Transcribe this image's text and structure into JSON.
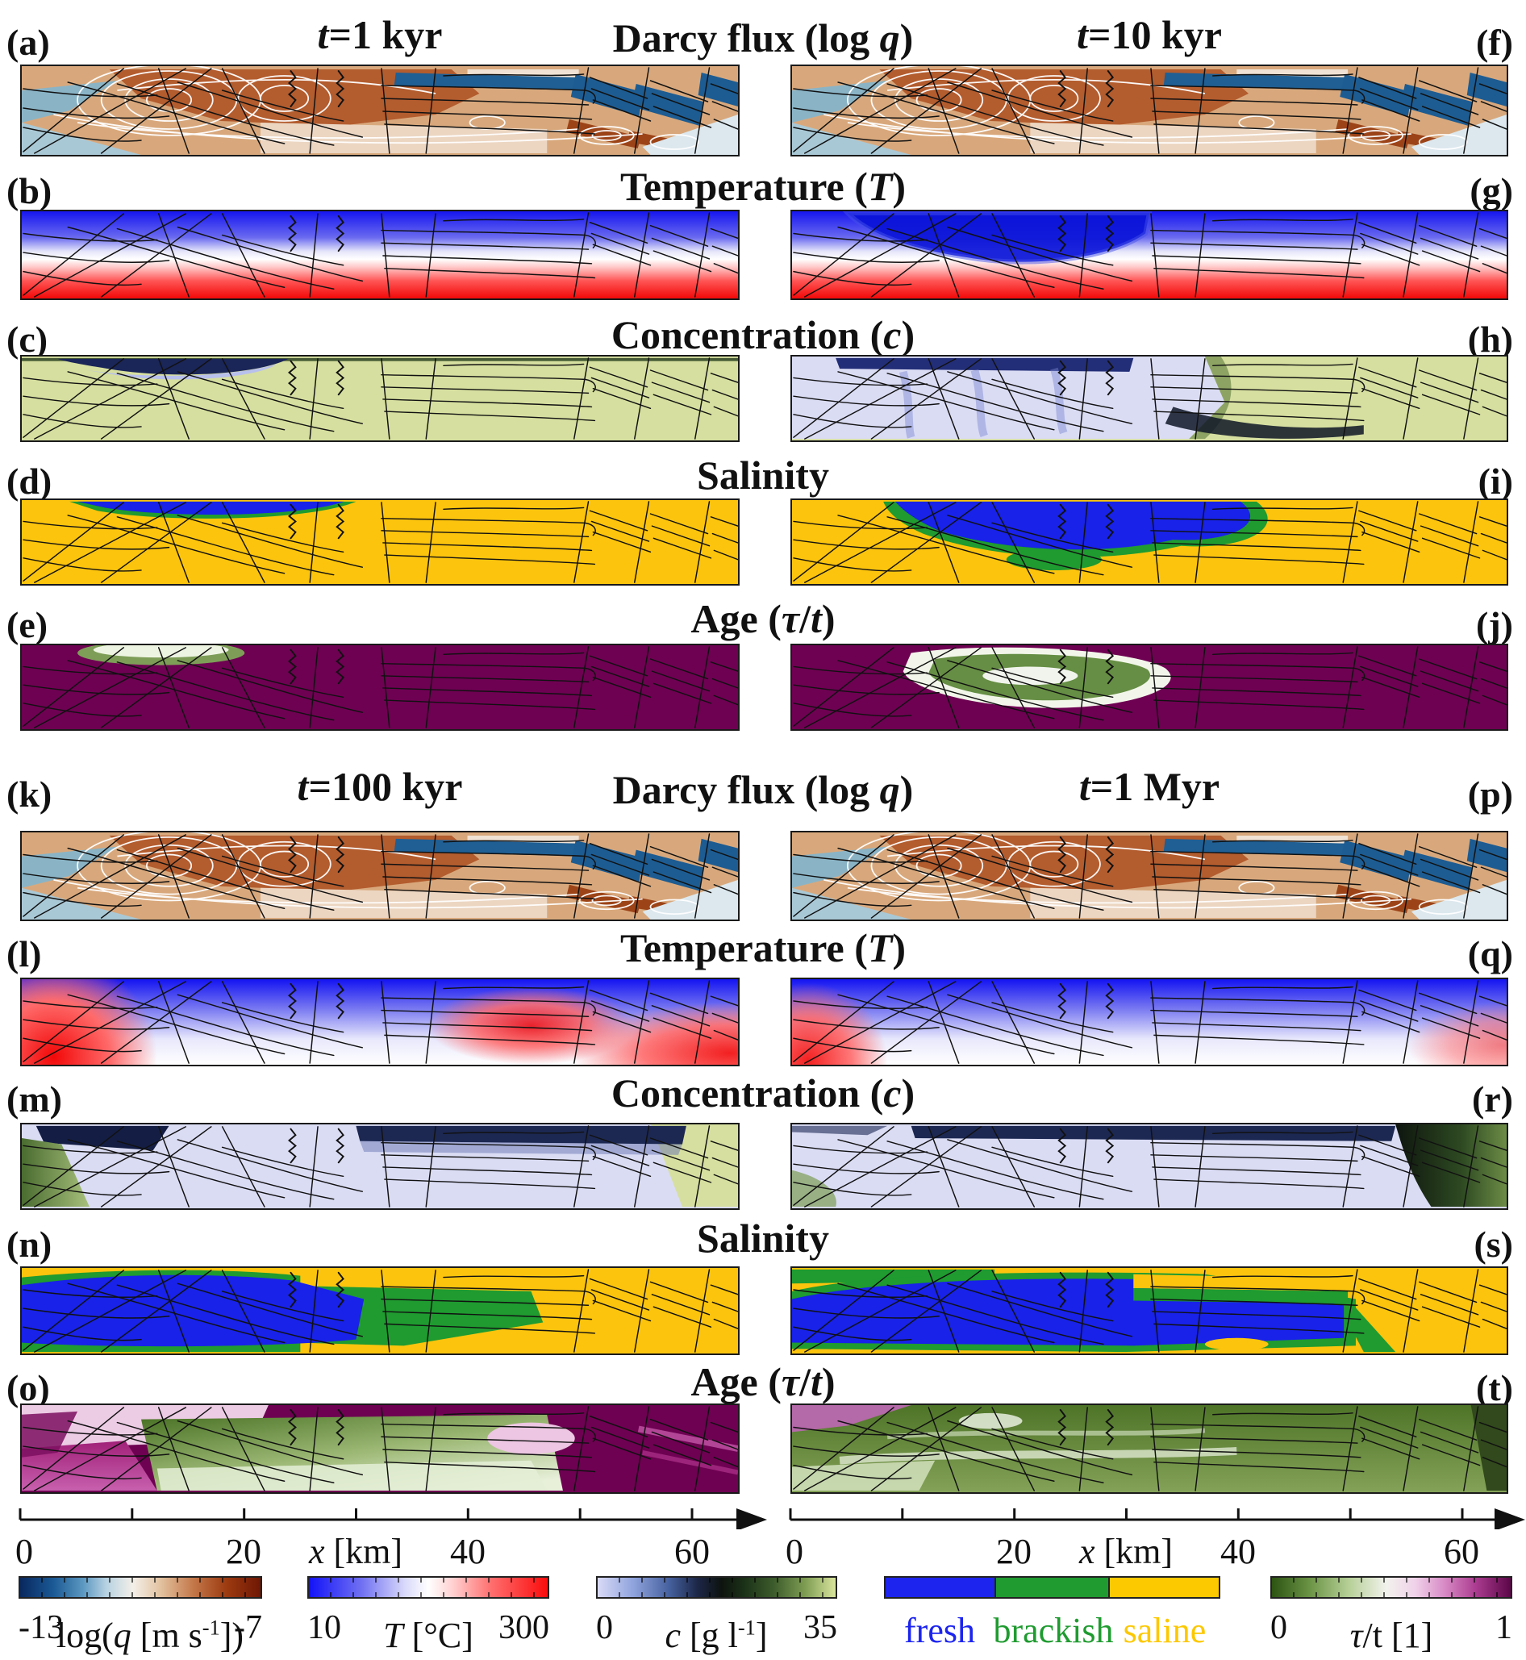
{
  "figure": {
    "blocks": [
      {
        "time_left": "<i>t</i>=1 kyr",
        "time_right": "<i>t</i>=10 kyr",
        "rows": [
          {
            "title": "Darcy flux (log <i>q</i>)",
            "left": "(a)",
            "right": "(f)"
          },
          {
            "title": "Temperature (<i>T</i>)",
            "left": "(b)",
            "right": "(g)"
          },
          {
            "title": "Concentration (<i>c</i>)",
            "left": "(c)",
            "right": "(h)"
          },
          {
            "title": "Salinity",
            "left": "(d)",
            "right": "(i)"
          },
          {
            "title": "Age (<i>&#964;</i>/<i>t</i>)",
            "left": "(e)",
            "right": "(j)"
          }
        ]
      },
      {
        "time_left": "<i>t</i>=100 kyr",
        "time_right": "<i>t</i>=1 Myr",
        "rows": [
          {
            "title": "Darcy flux (log <i>q</i>)",
            "left": "(k)",
            "right": "(p)"
          },
          {
            "title": "Temperature (<i>T</i>)",
            "left": "(l)",
            "right": "(q)"
          },
          {
            "title": "Concentration (<i>c</i>)",
            "left": "(m)",
            "right": "(r)"
          },
          {
            "title": "Salinity",
            "left": "(n)",
            "right": "(s)"
          },
          {
            "title": "Age (<i>&#964;</i>/<i>t</i>)",
            "left": "(o)",
            "right": "(t)"
          }
        ]
      }
    ],
    "x_axis": {
      "label": "<i>x</i> [km]",
      "ticks": [
        "0",
        "20",
        "40",
        "60"
      ]
    },
    "colorbars": [
      {
        "min": "-13",
        "label": "log(<i>q</i> [m s<sup>-1</sup>])",
        "max": "-7"
      },
      {
        "min": "10",
        "label": "<i>T</i> [&#176;C]",
        "max": "300"
      },
      {
        "min": "0",
        "label": "<i>c</i> [g l<sup>-1</sup>]",
        "max": "35"
      },
      {
        "classes": [
          {
            "name": "fresh",
            "color": "#1c24ee"
          },
          {
            "name": "brackish",
            "color": "#1f9b30"
          },
          {
            "name": "saline",
            "color": "#fcc800"
          }
        ]
      },
      {
        "min": "0",
        "label": "<i>&#964;</i>/t [1]",
        "max": "1"
      }
    ]
  },
  "chart_data": {
    "type": "heatmap",
    "subtype": "multi-panel 2D hydrogeological cross-section simulation snapshots",
    "grid": {
      "blocks": 2,
      "rows_per_block": 5,
      "columns": 2,
      "panel_ids": "a-t"
    },
    "x_axis": {
      "label": "x [km]",
      "min": 0,
      "max": 65,
      "labeled_ticks": [
        0,
        20,
        40,
        60
      ],
      "minor_ticks": [
        10,
        30,
        50
      ]
    },
    "times": [
      "t=1 kyr",
      "t=10 kyr",
      "t=100 kyr",
      "t=1 Myr"
    ],
    "quantities": [
      "Darcy flux (log q)",
      "Temperature (T)",
      "Concentration (c)",
      "Salinity",
      "Age (tau/t)"
    ],
    "colorbars": [
      {
        "quantity": "log(q [m s-1])",
        "range": [
          -13,
          -7
        ],
        "colormap": "dark blue - teal - white - tan - brown - dark red-brown"
      },
      {
        "quantity": "T [degC]",
        "range": [
          10,
          300
        ],
        "colormap": "blue - white - red"
      },
      {
        "quantity": "c [g l-1]",
        "range": [
          0,
          35
        ],
        "colormap": "pale lavender - blue - near black - dark green - pale yellow-green"
      },
      {
        "quantity": "salinity classes",
        "classes": [
          "fresh",
          "brackish",
          "saline"
        ],
        "colors": [
          "#1c24ee",
          "#1f9b30",
          "#fcc800"
        ]
      },
      {
        "quantity": "tau/t [1]",
        "range": [
          0,
          1
        ],
        "colormap": "dark green - white - magenta - dark purple"
      }
    ],
    "panels": [
      {
        "id": "(a)",
        "time": "t=1 kyr",
        "quantity": "Darcy flux",
        "description": "dense white streamline convection cells over brown high-flux matrix; tilted dark-blue low-flux blocks at right; pale blue low-flux wedge lower left"
      },
      {
        "id": "(f)",
        "time": "t=10 kyr",
        "quantity": "Darcy flux",
        "description": "similar convection pattern, vortices shifted; dark-blue tilted blocks at right with white ovals in brown bands"
      },
      {
        "id": "(b)",
        "time": "t=1 kyr",
        "quantity": "Temperature",
        "description": "conductive layering: blue (cold) top grading through white to red (hot) bottom"
      },
      {
        "id": "(g)",
        "time": "t=10 kyr",
        "quantity": "Temperature",
        "description": "layered blue-to-red field with deep cold (dark blue) downwelling plume in left-center"
      },
      {
        "id": "(c)",
        "time": "t=1 kyr",
        "quantity": "Concentration",
        "description": "uniform pale yellow-green (c near 35) with thin fresh (dark blue over lavender) lens at top left"
      },
      {
        "id": "(h)",
        "time": "t=10 kyr",
        "quantity": "Concentration",
        "description": "freshened pale-lavender region over left half with dark fingers; saline pale green right half"
      },
      {
        "id": "(d)",
        "time": "t=1 kyr",
        "quantity": "Salinity",
        "description": "saline gold everywhere except thin fresh blue band rimmed green at top left"
      },
      {
        "id": "(i)",
        "time": "t=10 kyr",
        "quantity": "Salinity",
        "description": "gold with large fresh blue lobe rimmed by brackish green in left-center"
      },
      {
        "id": "(e)",
        "time": "t=1 kyr",
        "quantity": "Age",
        "description": "old water (dark purple) everywhere; small young (white/green) patch at top left"
      },
      {
        "id": "(j)",
        "time": "t=10 kyr",
        "quantity": "Age",
        "description": "dark purple with young white/green plume in left-center"
      },
      {
        "id": "(k)",
        "time": "t=100 kyr",
        "quantity": "Darcy flux",
        "description": "large white spiral streamline systems left and center over brown matrix; dark-blue tilted blocks right"
      },
      {
        "id": "(p)",
        "time": "t=1 Myr",
        "quantity": "Darcy flux",
        "description": "quasi-steady convection streamlines; same block structure"
      },
      {
        "id": "(l)",
        "time": "t=100 kyr",
        "quantity": "Temperature",
        "description": "cold blue interior, hot red lower-left corner and warm red region right of center"
      },
      {
        "id": "(q)",
        "time": "t=1 Myr",
        "quantity": "Temperature",
        "description": "mostly cold blue/white; warm red lower-left corner and mild warm right edge"
      },
      {
        "id": "(m)",
        "time": "t=100 kyr",
        "quantity": "Concentration",
        "description": "fresh pale lavender over most of section; dark navy top band; residual pale green at right edge; green streak left edge"
      },
      {
        "id": "(r)",
        "time": "t=1 Myr",
        "quantity": "Concentration",
        "description": "fresh pale lavender left/center, dark navy top band, dark green saline wedge at right"
      },
      {
        "id": "(n)",
        "time": "t=100 kyr",
        "quantity": "Salinity",
        "description": "large fresh blue body left, brackish green core center, saline gold right quarter and top-left corner"
      },
      {
        "id": "(s)",
        "time": "t=1 Myr",
        "quantity": "Salinity",
        "description": "fresh blue dominates with green brackish rims and bands; gold band upper center-right; gold right quarter"
      },
      {
        "id": "(o)",
        "time": "t=100 kyr",
        "quantity": "Age",
        "description": "pale pink/magenta old water left, young green center, old dark purple right quarter"
      },
      {
        "id": "(t)",
        "time": "t=1 Myr",
        "quantity": "Age",
        "description": "mostly intermediate green with light streaks, magenta patch top-left, dark edge right"
      }
    ]
  }
}
